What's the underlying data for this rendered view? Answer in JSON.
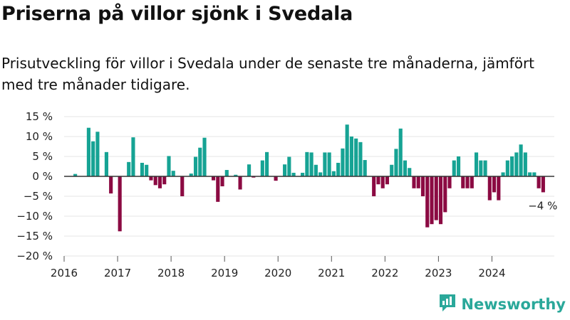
{
  "header": {
    "title": "Priserna på villor sjönk i Svedala",
    "subtitle": "Prisutveckling för villor i Svedala under de senaste tre månaderna, jämfört med tre månader tidigare."
  },
  "brand": {
    "name": "Newsworthy",
    "icon": "newsworthy-logo-icon"
  },
  "colors": {
    "positive": "#16a394",
    "negative": "#8b0a42",
    "grid": "#e6e6e6",
    "zero": "#333333"
  },
  "chart_data": {
    "type": "bar",
    "title": "Priserna på villor sjönk i Svedala",
    "xlabel": "",
    "ylabel": "",
    "ylim": [
      -20,
      15
    ],
    "yticks": [
      15,
      10,
      5,
      0,
      -5,
      -10,
      -15,
      -20
    ],
    "ytick_labels": [
      "15 %",
      "10 %",
      "5 %",
      "0 %",
      "−5 %",
      "−10 %",
      "−15 %",
      "−20 %"
    ],
    "xtick_labels": [
      "2016",
      "2017",
      "2018",
      "2019",
      "2020",
      "2021",
      "2022",
      "2023",
      "2024"
    ],
    "x_range": [
      "2016-01",
      "2025-03"
    ],
    "grid": true,
    "annotation": {
      "text": "−4 %",
      "x": "2024-12"
    },
    "x": [
      "2016-01",
      "2016-02",
      "2016-03",
      "2016-04",
      "2016-05",
      "2016-06",
      "2016-07",
      "2016-08",
      "2016-09",
      "2016-10",
      "2016-11",
      "2016-12",
      "2017-01",
      "2017-02",
      "2017-03",
      "2017-04",
      "2017-05",
      "2017-06",
      "2017-07",
      "2017-08",
      "2017-09",
      "2017-10",
      "2017-11",
      "2017-12",
      "2018-01",
      "2018-02",
      "2018-03",
      "2018-04",
      "2018-05",
      "2018-06",
      "2018-07",
      "2018-08",
      "2018-09",
      "2018-10",
      "2018-11",
      "2018-12",
      "2019-01",
      "2019-02",
      "2019-03",
      "2019-04",
      "2019-05",
      "2019-06",
      "2019-07",
      "2019-08",
      "2019-09",
      "2019-10",
      "2019-11",
      "2019-12",
      "2020-01",
      "2020-02",
      "2020-03",
      "2020-04",
      "2020-05",
      "2020-06",
      "2020-07",
      "2020-08",
      "2020-09",
      "2020-10",
      "2020-11",
      "2020-12",
      "2021-01",
      "2021-02",
      "2021-03",
      "2021-04",
      "2021-05",
      "2021-06",
      "2021-07",
      "2021-08",
      "2021-09",
      "2021-10",
      "2021-11",
      "2021-12",
      "2022-01",
      "2022-02",
      "2022-03",
      "2022-04",
      "2022-05",
      "2022-06",
      "2022-07",
      "2022-08",
      "2022-09",
      "2022-10",
      "2022-11",
      "2022-12",
      "2023-01",
      "2023-02",
      "2023-03",
      "2023-04",
      "2023-05",
      "2023-06",
      "2023-07",
      "2023-08",
      "2023-09",
      "2023-10",
      "2023-11",
      "2023-12",
      "2024-01",
      "2024-02",
      "2024-03",
      "2024-04",
      "2024-05",
      "2024-06",
      "2024-07",
      "2024-08",
      "2024-09",
      "2024-10",
      "2024-11",
      "2024-12"
    ],
    "values": [
      null,
      null,
      0.6,
      null,
      null,
      12.2,
      8.8,
      11.2,
      null,
      6.1,
      -4.3,
      null,
      -13.8,
      null,
      3.6,
      9.8,
      null,
      3.4,
      2.9,
      -1.0,
      -2.2,
      -3.0,
      -2.0,
      5.1,
      1.4,
      null,
      -5.0,
      null,
      0.7,
      4.9,
      7.2,
      9.7,
      null,
      -1.0,
      -6.4,
      -2.5,
      1.6,
      null,
      0.4,
      -3.3,
      null,
      3.0,
      -0.3,
      null,
      4.0,
      6.1,
      null,
      -1.1,
      null,
      3.0,
      4.9,
      0.9,
      null,
      0.9,
      6.1,
      6.0,
      2.9,
      1.0,
      6.0,
      6.0,
      1.3,
      3.4,
      7.0,
      13.0,
      10.0,
      9.5,
      8.6,
      4.1,
      null,
      -5.0,
      -2.0,
      -3.0,
      -2.0,
      2.9,
      6.9,
      12.0,
      4.0,
      2.1,
      -3.0,
      -3.0,
      -5.0,
      -12.8,
      -12.0,
      -11.0,
      -12.0,
      -9.0,
      -3.0,
      4.0,
      5.0,
      -3.0,
      -3.0,
      -3.0,
      6.0,
      4.0,
      4.0,
      -6.0,
      -4.0,
      -6.0,
      1.0,
      4.0,
      5.0,
      6.0,
      8.0,
      6.0,
      1.0,
      1.0,
      -3.0,
      -4.0
    ]
  }
}
